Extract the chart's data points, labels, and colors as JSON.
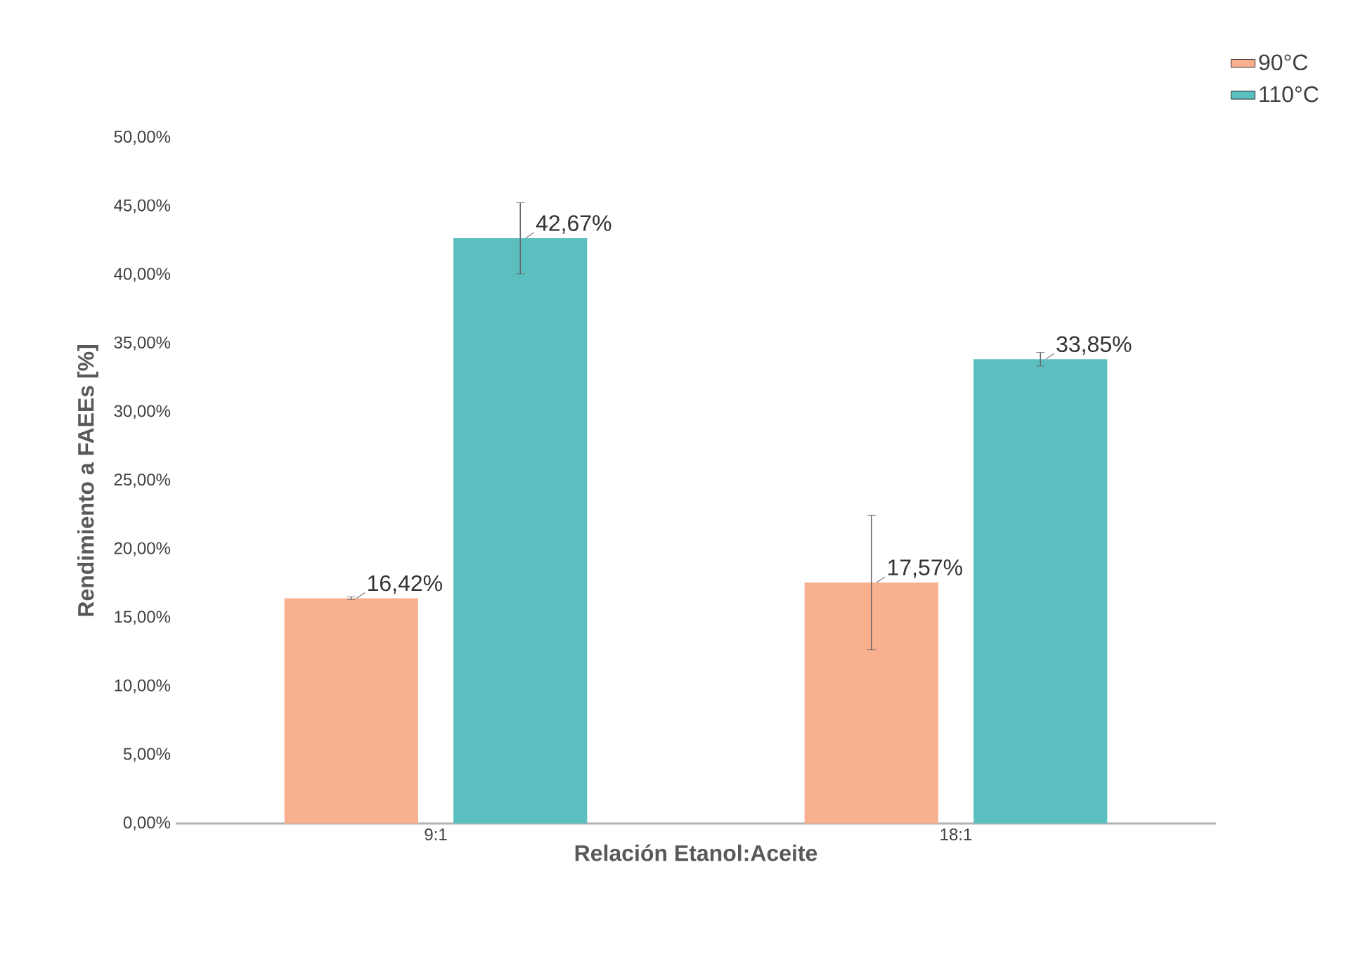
{
  "chart_data": {
    "type": "bar",
    "xlabel": "Relación Etanol:Aceite",
    "ylabel": "Rendimiento a FAEEs [%]",
    "categories": [
      "9:1",
      "18:1"
    ],
    "series": [
      {
        "name": "90°C",
        "color": "#f8b08e",
        "values": [
          16.42,
          17.57
        ],
        "errors": [
          0.1,
          4.9
        ],
        "value_labels": [
          "16,42%",
          "17,57%"
        ]
      },
      {
        "name": "110°C",
        "color": "#5bbfc0",
        "values": [
          42.67,
          33.85
        ],
        "errors": [
          2.6,
          0.5
        ],
        "value_labels": [
          "42,67%",
          "33,85%"
        ]
      }
    ],
    "ylim": [
      0,
      50
    ],
    "yticks": [
      {
        "value": 0,
        "label": "0,00%"
      },
      {
        "value": 5,
        "label": "5,00%"
      },
      {
        "value": 10,
        "label": "10,00%"
      },
      {
        "value": 15,
        "label": "15,00%"
      },
      {
        "value": 20,
        "label": "20,00%"
      },
      {
        "value": 25,
        "label": "25,00%"
      },
      {
        "value": 30,
        "label": "30,00%"
      },
      {
        "value": 35,
        "label": "35,00%"
      },
      {
        "value": 40,
        "label": "40,00%"
      },
      {
        "value": 45,
        "label": "45,00%"
      },
      {
        "value": 50,
        "label": "50,00%"
      }
    ],
    "legend": "top right",
    "grid": false
  }
}
